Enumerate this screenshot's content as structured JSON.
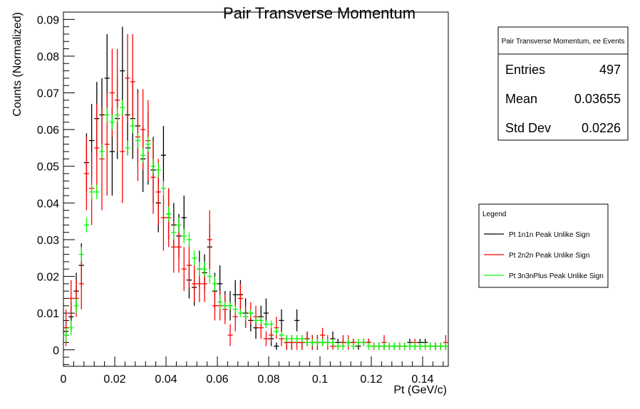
{
  "chart_data": {
    "type": "scatter",
    "title": "Pair Transverse Momentum",
    "xlabel": "Pt (GeV/c)",
    "ylabel": "Counts (Normalized)",
    "xlim": [
      0,
      0.15
    ],
    "ylim": [
      -0.0045,
      0.092
    ],
    "x_ticks": [
      "0",
      "0.02",
      "0.04",
      "0.06",
      "0.08",
      "0.1",
      "0.12",
      "0.14"
    ],
    "x_tick_values": [
      0,
      0.02,
      0.04,
      0.06,
      0.08,
      0.1,
      0.12,
      0.14
    ],
    "y_ticks": [
      "0",
      "0.01",
      "0.02",
      "0.03",
      "0.04",
      "0.05",
      "0.06",
      "0.07",
      "0.08",
      "0.09"
    ],
    "y_tick_values": [
      0,
      0.01,
      0.02,
      0.03,
      0.04,
      0.05,
      0.06,
      0.07,
      0.08,
      0.09
    ],
    "bin_width": 0.002,
    "series": [
      {
        "name": "Pt 1n1n Peak Unlike Sign",
        "color": "#000000",
        "x": [
          0.001,
          0.003,
          0.005,
          0.007,
          0.009,
          0.011,
          0.013,
          0.015,
          0.017,
          0.019,
          0.021,
          0.023,
          0.025,
          0.027,
          0.029,
          0.031,
          0.033,
          0.035,
          0.037,
          0.039,
          0.041,
          0.043,
          0.045,
          0.047,
          0.049,
          0.051,
          0.053,
          0.055,
          0.057,
          0.059,
          0.061,
          0.063,
          0.065,
          0.067,
          0.069,
          0.071,
          0.073,
          0.075,
          0.077,
          0.079,
          0.081,
          0.083,
          0.085,
          0.087,
          0.089,
          0.091,
          0.093,
          0.095,
          0.097,
          0.099,
          0.101,
          0.103,
          0.105,
          0.107,
          0.109,
          0.111,
          0.113,
          0.115,
          0.117,
          0.119,
          0.121,
          0.123,
          0.125,
          0.127,
          0.129,
          0.131,
          0.133,
          0.135,
          0.137,
          0.139,
          0.141,
          0.143,
          0.145,
          0.147,
          0.149
        ],
        "y": [
          0.005,
          0.009,
          0.016,
          0.023,
          0.051,
          0.057,
          0.063,
          0.064,
          0.074,
          0.054,
          0.063,
          0.076,
          0.064,
          0.063,
          0.061,
          0.052,
          0.055,
          0.049,
          0.04,
          0.053,
          0.037,
          0.034,
          0.031,
          0.036,
          0.019,
          0.017,
          0.022,
          0.021,
          0.028,
          0.016,
          0.018,
          0.012,
          0.012,
          0.015,
          0.015,
          0.01,
          0.008,
          0.006,
          0.009,
          0.01,
          0.003,
          0.001,
          0.008,
          0.002,
          0.002,
          0.008,
          0.002,
          0.003,
          0.002,
          0.002,
          0.002,
          0.002,
          0.003,
          0.002,
          0.002,
          0.002,
          0.002,
          0.001,
          0.002,
          0.002,
          0.001,
          0.001,
          0.001,
          0.001,
          0.001,
          0.001,
          0.001,
          0.002,
          0.001,
          0.002,
          0.002,
          0.001,
          0.001,
          0.001,
          0.001
        ],
        "err": [
          0.003,
          0.004,
          0.005,
          0.006,
          0.008,
          0.01,
          0.01,
          0.01,
          0.012,
          0.012,
          0.011,
          0.012,
          0.011,
          0.011,
          0.01,
          0.009,
          0.01,
          0.009,
          0.008,
          0.008,
          0.007,
          0.006,
          0.006,
          0.006,
          0.005,
          0.005,
          0.005,
          0.005,
          0.006,
          0.005,
          0.005,
          0.004,
          0.004,
          0.004,
          0.004,
          0.004,
          0.003,
          0.003,
          0.003,
          0.004,
          0.002,
          0.001,
          0.003,
          0.002,
          0.002,
          0.003,
          0.002,
          0.002,
          0.002,
          0.002,
          0.001,
          0.001,
          0.002,
          0.001,
          0.001,
          0.001,
          0.001,
          0.001,
          0.001,
          0.001,
          0.001,
          0.001,
          0.001,
          0.001,
          0.001,
          0.001,
          0.001,
          0.001,
          0.001,
          0.001,
          0.001,
          0.001,
          0.001,
          0.001,
          0.001
        ]
      },
      {
        "name": "Pt 2n2n Peak Unlike Sign",
        "color": "#ff0000",
        "x": [
          0.001,
          0.003,
          0.005,
          0.007,
          0.009,
          0.011,
          0.013,
          0.015,
          0.017,
          0.019,
          0.021,
          0.023,
          0.025,
          0.027,
          0.029,
          0.031,
          0.033,
          0.035,
          0.037,
          0.039,
          0.041,
          0.043,
          0.045,
          0.047,
          0.049,
          0.051,
          0.053,
          0.055,
          0.057,
          0.059,
          0.061,
          0.063,
          0.065,
          0.067,
          0.069,
          0.071,
          0.073,
          0.075,
          0.077,
          0.079,
          0.081,
          0.083,
          0.085,
          0.087,
          0.089,
          0.091,
          0.093,
          0.095,
          0.097,
          0.099,
          0.101,
          0.103,
          0.105,
          0.107,
          0.109,
          0.111,
          0.113,
          0.115,
          0.117,
          0.119,
          0.121,
          0.123,
          0.125,
          0.127,
          0.129,
          0.131,
          0.133,
          0.135,
          0.137,
          0.139,
          0.141,
          0.143,
          0.145,
          0.147,
          0.149
        ],
        "y": [
          0.006,
          0.014,
          0.014,
          0.018,
          0.048,
          0.044,
          0.055,
          0.052,
          0.056,
          0.07,
          0.068,
          0.054,
          0.074,
          0.073,
          0.058,
          0.06,
          0.057,
          0.047,
          0.043,
          0.036,
          0.036,
          0.028,
          0.028,
          0.022,
          0.023,
          0.018,
          0.018,
          0.018,
          0.03,
          0.012,
          0.012,
          0.011,
          0.004,
          0.009,
          0.014,
          0.009,
          0.01,
          0.009,
          0.006,
          0.003,
          0.004,
          0.006,
          0.003,
          0.002,
          0.002,
          0.002,
          0.002,
          0.003,
          0.002,
          0.002,
          0.004,
          0.002,
          0.001,
          0.001,
          0.002,
          0.002,
          0.002,
          0.002,
          0.002,
          0.002,
          0.001,
          0.001,
          0.002,
          0.001,
          0.001,
          0.001,
          0.001,
          0.001,
          0.002,
          0.001,
          0.001,
          0.001,
          0.001,
          0.001,
          0.002
        ],
        "err": [
          0.005,
          0.005,
          0.005,
          0.007,
          0.01,
          0.01,
          0.012,
          0.014,
          0.014,
          0.012,
          0.014,
          0.014,
          0.012,
          0.013,
          0.012,
          0.011,
          0.011,
          0.01,
          0.009,
          0.009,
          0.008,
          0.007,
          0.007,
          0.006,
          0.006,
          0.005,
          0.005,
          0.005,
          0.008,
          0.004,
          0.004,
          0.004,
          0.003,
          0.004,
          0.004,
          0.003,
          0.003,
          0.003,
          0.003,
          0.002,
          0.002,
          0.003,
          0.002,
          0.002,
          0.002,
          0.002,
          0.002,
          0.002,
          0.002,
          0.002,
          0.002,
          0.002,
          0.001,
          0.001,
          0.002,
          0.002,
          0.001,
          0.001,
          0.001,
          0.001,
          0.001,
          0.001,
          0.002,
          0.001,
          0.001,
          0.001,
          0.001,
          0.001,
          0.001,
          0.001,
          0.001,
          0.001,
          0.001,
          0.001,
          0.002
        ]
      },
      {
        "name": "Pt 3n3nPlus Peak Unlike Sign",
        "color": "#00ff00",
        "x": [
          0.001,
          0.003,
          0.005,
          0.007,
          0.009,
          0.011,
          0.013,
          0.015,
          0.017,
          0.019,
          0.021,
          0.023,
          0.025,
          0.027,
          0.029,
          0.031,
          0.033,
          0.035,
          0.037,
          0.039,
          0.041,
          0.043,
          0.045,
          0.047,
          0.049,
          0.051,
          0.053,
          0.055,
          0.057,
          0.059,
          0.061,
          0.063,
          0.065,
          0.067,
          0.069,
          0.071,
          0.073,
          0.075,
          0.077,
          0.079,
          0.081,
          0.083,
          0.085,
          0.087,
          0.089,
          0.091,
          0.093,
          0.095,
          0.097,
          0.099,
          0.101,
          0.103,
          0.105,
          0.107,
          0.109,
          0.111,
          0.113,
          0.115,
          0.117,
          0.119,
          0.121,
          0.123,
          0.125,
          0.127,
          0.129,
          0.131,
          0.133,
          0.135,
          0.137,
          0.139,
          0.141,
          0.143,
          0.145,
          0.147,
          0.149
        ],
        "y": [
          0.004,
          0.006,
          0.012,
          0.026,
          0.034,
          0.043,
          0.043,
          0.054,
          0.064,
          0.062,
          0.064,
          0.066,
          0.055,
          0.061,
          0.057,
          0.053,
          0.056,
          0.05,
          0.049,
          0.044,
          0.037,
          0.032,
          0.034,
          0.031,
          0.03,
          0.025,
          0.022,
          0.022,
          0.02,
          0.018,
          0.013,
          0.012,
          0.012,
          0.011,
          0.01,
          0.009,
          0.01,
          0.008,
          0.008,
          0.007,
          0.007,
          0.005,
          0.004,
          0.003,
          0.003,
          0.003,
          0.003,
          0.002,
          0.002,
          0.002,
          0.002,
          0.002,
          0.002,
          0.001,
          0.001,
          0.002,
          0.001,
          0.002,
          0.002,
          0.001,
          0.001,
          0.001,
          0.001,
          0.001,
          0.001,
          0.001,
          0.001,
          0.001,
          0.001,
          0.001,
          0.001,
          0.001,
          0.001,
          0.001,
          0.001
        ],
        "err": [
          0.002,
          0.002,
          0.002,
          0.002,
          0.002,
          0.002,
          0.002,
          0.002,
          0.002,
          0.002,
          0.002,
          0.002,
          0.002,
          0.002,
          0.002,
          0.002,
          0.002,
          0.002,
          0.002,
          0.002,
          0.002,
          0.002,
          0.002,
          0.002,
          0.002,
          0.002,
          0.002,
          0.002,
          0.002,
          0.002,
          0.002,
          0.001,
          0.001,
          0.001,
          0.001,
          0.001,
          0.001,
          0.001,
          0.001,
          0.001,
          0.001,
          0.001,
          0.001,
          0.001,
          0.001,
          0.001,
          0.001,
          0.001,
          0.001,
          0.001,
          0.001,
          0.001,
          0.001,
          0.001,
          0.001,
          0.001,
          0.001,
          0.001,
          0.001,
          0.001,
          0.001,
          0.001,
          0.001,
          0.001,
          0.001,
          0.001,
          0.001,
          0.001,
          0.001,
          0.001,
          0.001,
          0.001,
          0.001,
          0.001,
          0.001
        ]
      }
    ]
  },
  "stats_box": {
    "title": "Pair Transverse Momentum, ee Events",
    "rows": [
      {
        "label": "Entries",
        "value": "497"
      },
      {
        "label": "Mean",
        "value": "0.03655"
      },
      {
        "label": "Std Dev",
        "value": "0.0226"
      }
    ]
  },
  "legend": {
    "title": "Legend",
    "placement": "right"
  }
}
